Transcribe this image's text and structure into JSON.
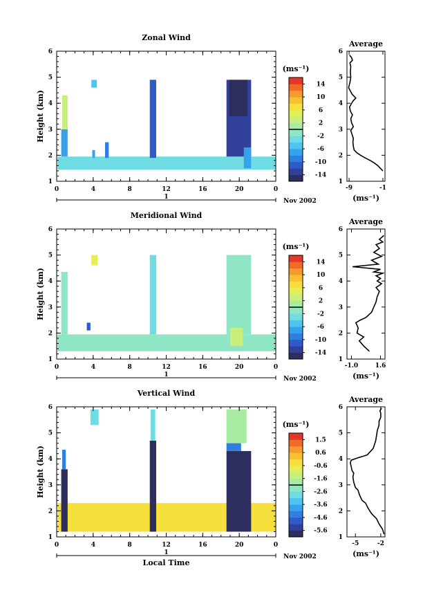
{
  "chart_data": [
    {
      "type": "heatmap",
      "title": "Zonal Wind",
      "ylabel": "Height (km)",
      "xlabel": "",
      "xticks": [
        "0",
        "4",
        "8",
        "12",
        "16",
        "20",
        "0"
      ],
      "xlim": [
        0,
        24
      ],
      "yticks": [
        "1",
        "2",
        "3",
        "4",
        "5",
        "6"
      ],
      "ylim": [
        1,
        6
      ],
      "day_label": "1",
      "month_label": "Nov 2002",
      "colorbar": {
        "unit": "(ms⁻¹)",
        "ticks": [
          "14",
          "10",
          "6",
          "2",
          "-2",
          "-6",
          "-10",
          "-14"
        ],
        "range": [
          -16,
          16
        ],
        "levels": 16
      },
      "blocks": [
        {
          "t0": 0.1,
          "t1": 24.0,
          "h0": 1.45,
          "h1": 1.95,
          "v": -4
        },
        {
          "t0": 0.5,
          "t1": 1.2,
          "h0": 1.95,
          "h1": 3.0,
          "v": -7
        },
        {
          "t0": 0.6,
          "t1": 1.2,
          "h0": 3.0,
          "h1": 4.3,
          "v": 2
        },
        {
          "t0": 3.8,
          "t1": 4.4,
          "h0": 4.6,
          "h1": 4.9,
          "v": -6
        },
        {
          "t0": 3.9,
          "t1": 4.2,
          "h0": 1.9,
          "h1": 2.2,
          "v": -8
        },
        {
          "t0": 5.3,
          "t1": 5.7,
          "h0": 1.9,
          "h1": 2.5,
          "v": -10
        },
        {
          "t0": 10.2,
          "t1": 10.9,
          "h0": 1.9,
          "h1": 4.9,
          "v": -11
        },
        {
          "t0": 18.6,
          "t1": 21.3,
          "h0": 1.95,
          "h1": 4.9,
          "v": -13
        },
        {
          "t0": 18.9,
          "t1": 20.9,
          "h0": 3.5,
          "h1": 4.9,
          "v": -15
        },
        {
          "t0": 20.5,
          "t1": 21.3,
          "h0": 1.5,
          "h1": 2.3,
          "v": -8
        }
      ],
      "profile": {
        "title": "Average",
        "xticks": [
          "-9",
          "-1"
        ],
        "xlim": [
          -9.5,
          -0.5
        ],
        "xlabel": "(ms⁻¹)",
        "yticks": [
          "1",
          "2",
          "3",
          "4",
          "5",
          "6"
        ],
        "ylim": [
          1,
          6
        ],
        "x": [
          -1.0,
          -1.6,
          -2.2,
          -3.0,
          -4.0,
          -5.2,
          -6.3,
          -7.2,
          -7.8,
          -8.0,
          -8.1,
          -8.0,
          -8.3,
          -8.6,
          -8.0,
          -8.4,
          -8.6,
          -8.2,
          -8.7,
          -8.9,
          -8.4,
          -8.0,
          -7.4,
          -8.3,
          -8.8,
          -9.1,
          -8.8,
          -8.6,
          -8.7,
          -8.6,
          -8.8,
          -8.2,
          -8.4,
          -8.9
        ],
        "h": [
          1.4,
          1.5,
          1.6,
          1.7,
          1.8,
          1.9,
          2.0,
          2.1,
          2.2,
          2.35,
          2.5,
          2.65,
          2.8,
          2.95,
          3.1,
          3.25,
          3.4,
          3.55,
          3.7,
          3.85,
          4.0,
          4.1,
          4.2,
          4.35,
          4.5,
          4.6,
          4.8,
          5.0,
          5.2,
          5.4,
          5.55,
          5.65,
          5.75,
          5.85
        ]
      }
    },
    {
      "type": "heatmap",
      "title": "Meridional Wind",
      "ylabel": "Height (km)",
      "xlabel": "",
      "xticks": [
        "0",
        "4",
        "8",
        "12",
        "16",
        "20",
        "0"
      ],
      "xlim": [
        0,
        24
      ],
      "yticks": [
        "1",
        "2",
        "3",
        "4",
        "5",
        "6"
      ],
      "ylim": [
        1,
        6
      ],
      "day_label": "1",
      "month_label": "Nov 2002",
      "colorbar": {
        "unit": "(ms⁻¹)",
        "ticks": [
          "14",
          "10",
          "6",
          "2",
          "-2",
          "-6",
          "-10",
          "-14"
        ],
        "range": [
          -16,
          16
        ],
        "levels": 16
      },
      "blocks": [
        {
          "t0": 0.1,
          "t1": 24.0,
          "h0": 1.3,
          "h1": 1.95,
          "v": -1
        },
        {
          "t0": 0.5,
          "t1": 1.2,
          "h0": 1.95,
          "h1": 4.35,
          "v": -2
        },
        {
          "t0": 3.8,
          "t1": 4.5,
          "h0": 4.6,
          "h1": 5.0,
          "v": 5
        },
        {
          "t0": 3.3,
          "t1": 3.7,
          "h0": 2.1,
          "h1": 2.4,
          "v": -11
        },
        {
          "t0": 10.2,
          "t1": 10.9,
          "h0": 1.95,
          "h1": 5.0,
          "v": -3
        },
        {
          "t0": 18.6,
          "t1": 21.3,
          "h0": 1.95,
          "h1": 5.0,
          "v": -2
        },
        {
          "t0": 19.0,
          "t1": 20.4,
          "h0": 1.5,
          "h1": 2.2,
          "v": 3
        }
      ],
      "profile": {
        "title": "Average",
        "xticks": [
          "-1.0",
          "1.6"
        ],
        "xlim": [
          -1.4,
          2.0
        ],
        "xlabel": "(ms⁻¹)",
        "yticks": [
          "1",
          "2",
          "3",
          "4",
          "5",
          "6"
        ],
        "ylim": [
          1,
          6
        ],
        "x": [
          0.6,
          0.1,
          -0.3,
          0.1,
          -0.5,
          -0.4,
          -0.6,
          -0.2,
          0.3,
          0.8,
          1.0,
          1.2,
          1.3,
          1.5,
          1.2,
          1.7,
          1.3,
          1.6,
          1.2,
          1.8,
          1.0,
          1.6,
          -0.9,
          1.4,
          0.8,
          1.7,
          1.0,
          1.5,
          1.2,
          1.8,
          1.5,
          1.9
        ],
        "h": [
          1.3,
          1.5,
          1.7,
          1.85,
          2.0,
          2.2,
          2.4,
          2.5,
          2.6,
          2.8,
          3.0,
          3.2,
          3.4,
          3.6,
          3.75,
          3.9,
          4.0,
          4.1,
          4.2,
          4.3,
          4.35,
          4.45,
          4.55,
          4.65,
          4.8,
          4.95,
          5.1,
          5.25,
          5.4,
          5.5,
          5.6,
          5.75
        ]
      }
    },
    {
      "type": "heatmap",
      "title": "Vertical Wind",
      "ylabel": "Height (km)",
      "xlabel": "Local Time",
      "xticks": [
        "0",
        "4",
        "8",
        "12",
        "16",
        "20",
        "0"
      ],
      "xlim": [
        0,
        24
      ],
      "yticks": [
        "1",
        "2",
        "3",
        "4",
        "5",
        "6"
      ],
      "ylim": [
        1,
        6
      ],
      "day_label": "1",
      "month_label": "Nov 2002",
      "colorbar": {
        "unit": "(ms⁻¹)",
        "ticks": [
          "1.5",
          "0.6",
          "-0.6",
          "-1.6",
          "-2.6",
          "-3.6",
          "-4.6",
          "-5.6"
        ],
        "range": [
          -6.0,
          2.0
        ],
        "levels": 16
      },
      "blocks": [
        {
          "t0": 0.1,
          "t1": 24.0,
          "h0": 1.2,
          "h1": 2.3,
          "v": -0.3
        },
        {
          "t0": 3.5,
          "t1": 5.0,
          "h0": 1.2,
          "h1": 1.5,
          "v": -0.5
        },
        {
          "t0": 0.5,
          "t1": 1.2,
          "h0": 1.2,
          "h1": 3.6,
          "v": -5.8
        },
        {
          "t0": 0.6,
          "t1": 1.0,
          "h0": 3.6,
          "h1": 4.35,
          "v": -4.2
        },
        {
          "t0": 3.7,
          "t1": 4.6,
          "h0": 5.3,
          "h1": 5.9,
          "v": -2.8
        },
        {
          "t0": 10.2,
          "t1": 10.9,
          "h0": 1.2,
          "h1": 4.7,
          "v": -5.8
        },
        {
          "t0": 10.3,
          "t1": 10.8,
          "h0": 4.7,
          "h1": 5.9,
          "v": -2.8
        },
        {
          "t0": 18.6,
          "t1": 21.3,
          "h0": 1.2,
          "h1": 4.3,
          "v": -5.9
        },
        {
          "t0": 18.6,
          "t1": 20.8,
          "h0": 4.6,
          "h1": 5.9,
          "v": -2.0
        },
        {
          "t0": 18.6,
          "t1": 20.2,
          "h0": 4.3,
          "h1": 4.6,
          "v": -4.2
        }
      ],
      "profile": {
        "title": "Average",
        "xticks": [
          "-5",
          "-2"
        ],
        "xlim": [
          -6.0,
          -1.5
        ],
        "xlabel": "(ms⁻¹)",
        "yticks": [
          "1",
          "2",
          "3",
          "4",
          "5",
          "6"
        ],
        "ylim": [
          1,
          6
        ],
        "x": [
          -1.6,
          -1.8,
          -2.2,
          -2.5,
          -3.1,
          -3.5,
          -3.8,
          -4.2,
          -4.5,
          -4.7,
          -5.0,
          -5.2,
          -5.3,
          -5.2,
          -5.4,
          -5.5,
          -5.6,
          -5.5,
          -4.6,
          -3.6,
          -2.9,
          -2.6,
          -2.5,
          -2.4,
          -2.3,
          -2.2,
          -2.2,
          -2.0,
          -2.0,
          -2.1,
          -1.9
        ],
        "h": [
          1.1,
          1.3,
          1.5,
          1.7,
          1.9,
          2.1,
          2.3,
          2.4,
          2.6,
          2.8,
          2.9,
          3.1,
          3.3,
          3.45,
          3.55,
          3.7,
          3.85,
          3.95,
          4.05,
          4.15,
          4.4,
          4.7,
          4.9,
          5.1,
          5.2,
          5.3,
          5.45,
          5.6,
          5.75,
          5.85,
          5.95
        ]
      }
    }
  ]
}
